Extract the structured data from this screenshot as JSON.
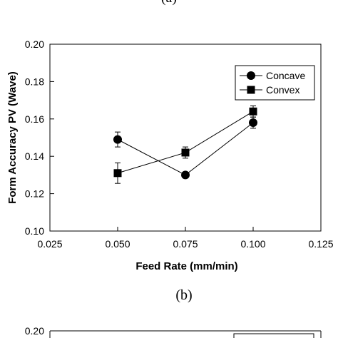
{
  "top_caption": "(a)",
  "bottom_caption": "(b)",
  "chart_data": [
    {
      "type": "line",
      "xlabel": "Feed Rate (mm/min)",
      "ylabel": "Form Accuracy PV (Wave)",
      "xlim": [
        0.025,
        0.125
      ],
      "ylim": [
        0.1,
        0.2
      ],
      "x_ticks": [
        "0.025",
        "0.050",
        "0.075",
        "0.100",
        "0.125"
      ],
      "y_ticks": [
        "0.10",
        "0.12",
        "0.14",
        "0.16",
        "0.18",
        "0.20"
      ],
      "grid": false,
      "legend_position": "top-right",
      "series": [
        {
          "name": "Concave",
          "marker": "circle",
          "color": "#000000",
          "x": [
            0.05,
            0.075,
            0.1
          ],
          "y": [
            0.149,
            0.13,
            0.158
          ],
          "error": [
            0.004,
            0.0015,
            0.003
          ]
        },
        {
          "name": "Convex",
          "marker": "square",
          "color": "#000000",
          "x": [
            0.05,
            0.075,
            0.1
          ],
          "y": [
            0.131,
            0.142,
            0.164
          ],
          "error": [
            0.0055,
            0.003,
            0.003
          ]
        }
      ]
    },
    {
      "type": "line",
      "y_ticks": [
        "0.20"
      ]
    }
  ]
}
